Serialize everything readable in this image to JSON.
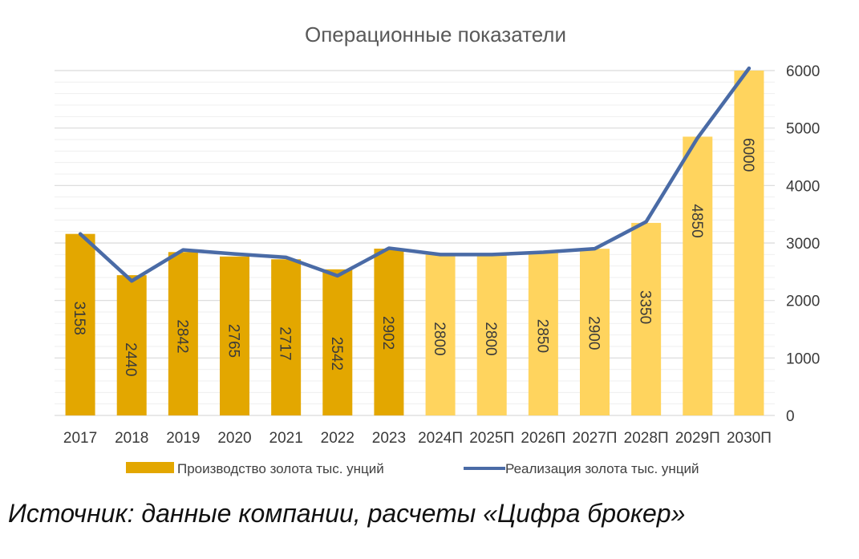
{
  "chart_data": {
    "type": "bar",
    "title": "Операционные показатели",
    "categories": [
      "2017",
      "2018",
      "2019",
      "2020",
      "2021",
      "2022",
      "2023",
      "2024П",
      "2025П",
      "2026П",
      "2027П",
      "2028П",
      "2029П",
      "2030П"
    ],
    "series": [
      {
        "name": "Производство золота тыс. унций",
        "type": "bar",
        "values": [
          3158,
          2440,
          2842,
          2765,
          2717,
          2542,
          2902,
          2800,
          2800,
          2850,
          2900,
          3350,
          4850,
          6000
        ],
        "data_labels": [
          "3158",
          "2440",
          "2842",
          "2765",
          "2717",
          "2542",
          "2902",
          "2800",
          "2800",
          "2850",
          "2900",
          "3350",
          "4850",
          "6000"
        ],
        "color_actual": "#E3A700",
        "color_forecast": "#FFD45E",
        "forecast_from_index": 7
      },
      {
        "name": "Реализация золота тыс. унций",
        "type": "line",
        "values": [
          3158,
          2340,
          2880,
          2810,
          2750,
          2430,
          2910,
          2800,
          2800,
          2840,
          2900,
          3370,
          4830,
          6040
        ],
        "color": "#4A6BA6"
      }
    ],
    "y_axis": {
      "position": "right",
      "range": [
        0,
        6000
      ],
      "tick_labels": [
        "0",
        "1000",
        "2000",
        "3000",
        "4000",
        "5000",
        "6000"
      ],
      "major_step": 1000,
      "minor_step": 200
    },
    "grid": true,
    "legend": "bottom"
  },
  "source_text": "Источник: данные компании, расчеты «Цифра брокер»"
}
